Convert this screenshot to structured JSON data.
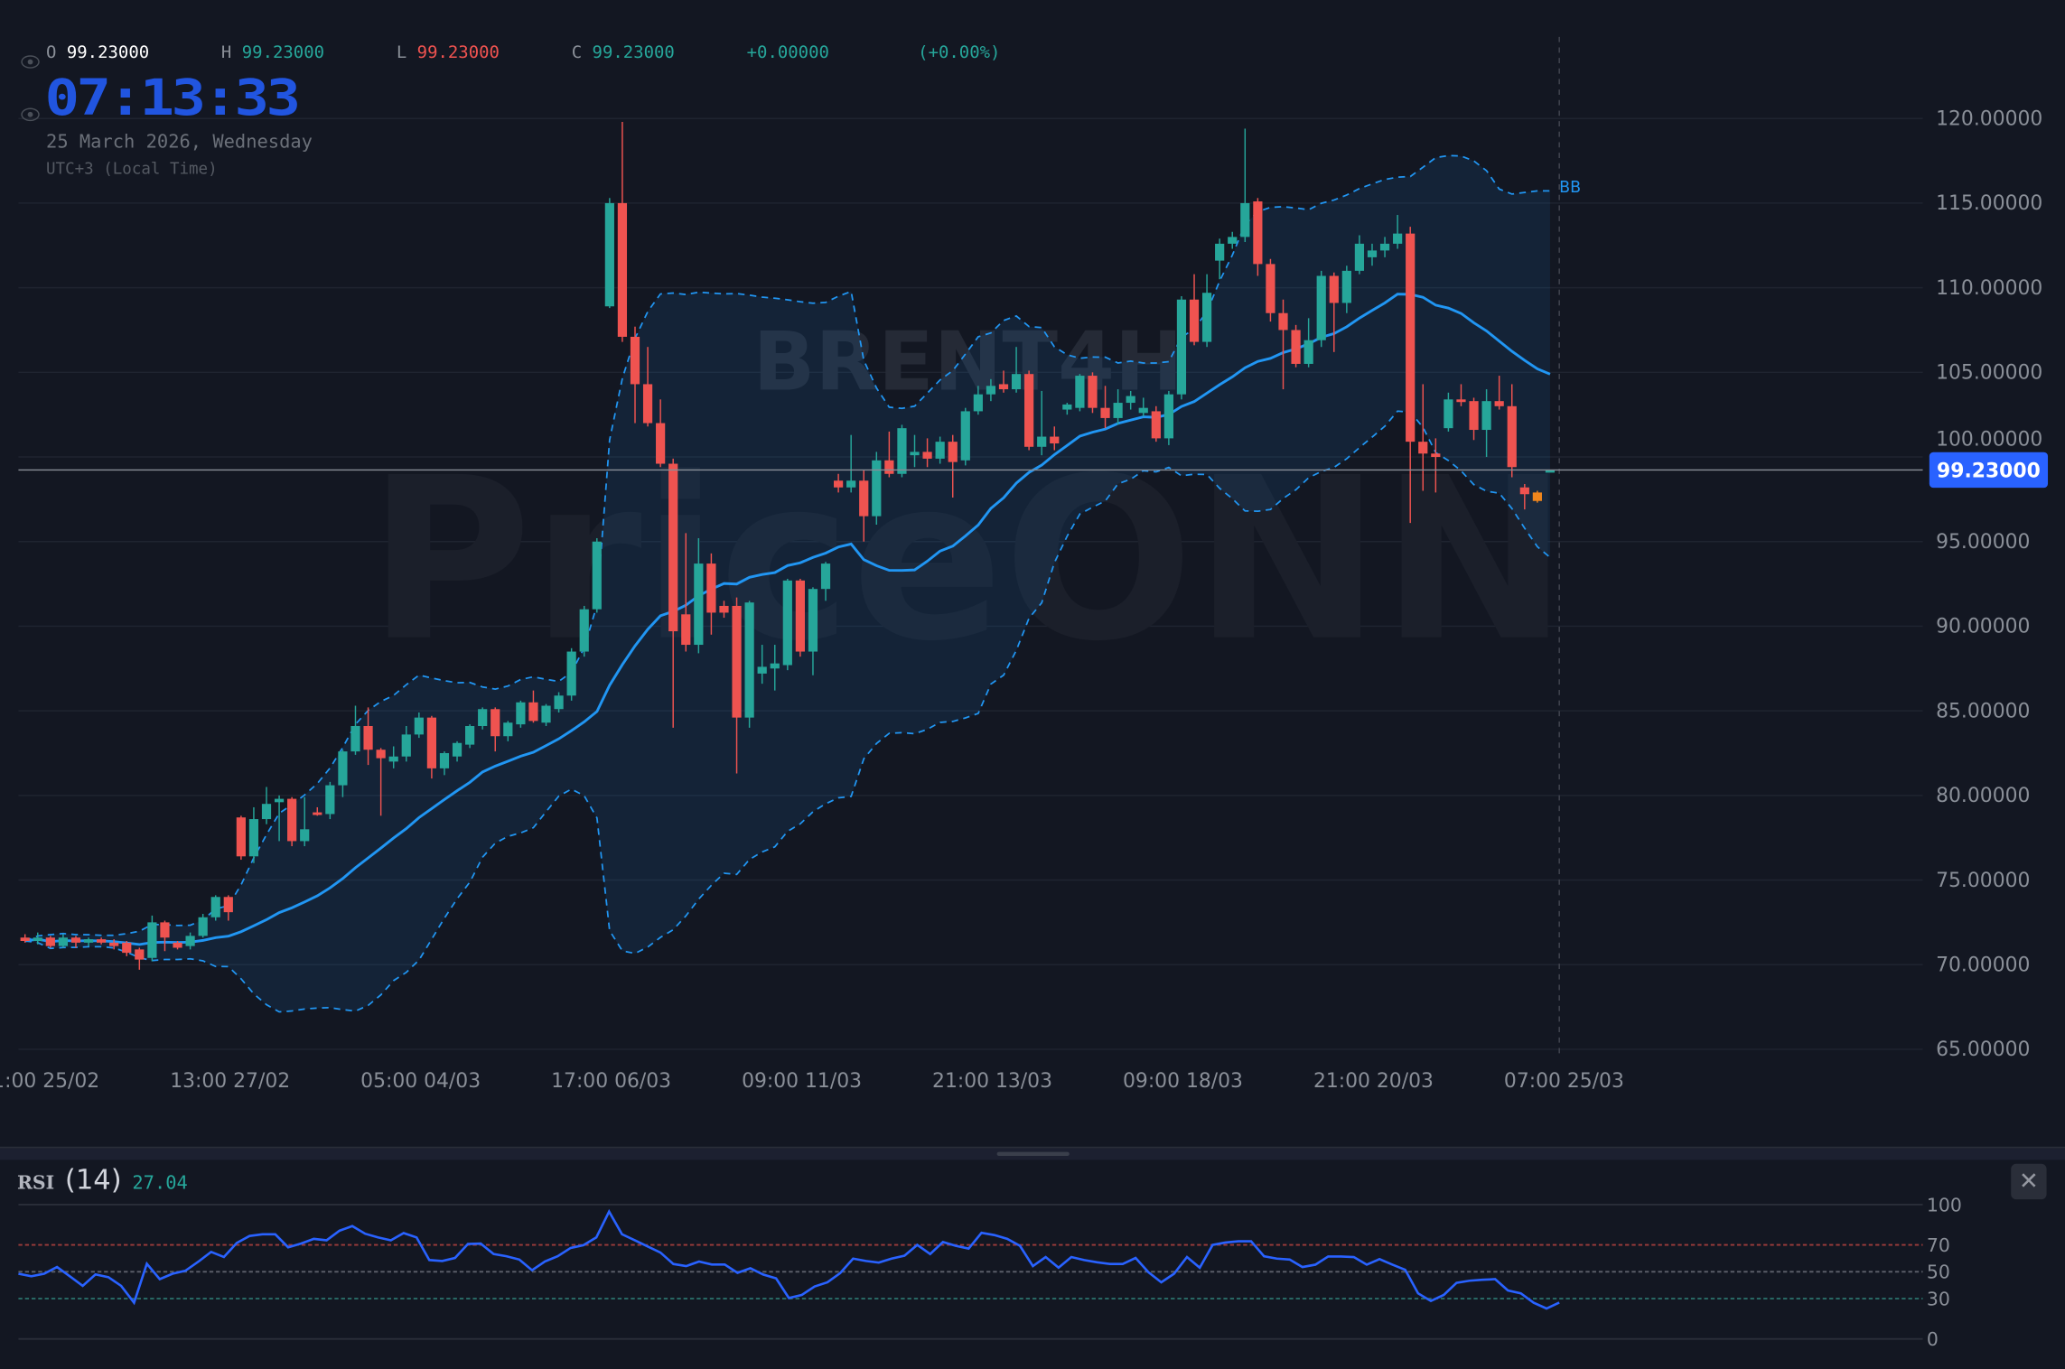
{
  "symbol_watermark": "BRENT4H",
  "brand_watermark": "PriceONN",
  "legend": {
    "o_label": "O",
    "o_value": "99.23000",
    "h_label": "H",
    "h_value": "99.23000",
    "l_label": "L",
    "l_value": "99.23000",
    "c_label": "C",
    "c_value": "99.23000",
    "change": "+0.00000",
    "change_pct": "(+0.00%)"
  },
  "clock": {
    "time": "07:13:33",
    "date": "25 March 2026, Wednesday",
    "timezone": "UTC+3 (Local Time)"
  },
  "indicator_label": "BB",
  "current_price_label": "99.23000",
  "price_axis": [
    "120.00000",
    "115.00000",
    "110.00000",
    "105.00000",
    "100.00000",
    "95.00000",
    "90.00000",
    "85.00000",
    "80.00000",
    "75.00000",
    "70.00000",
    "65.00000"
  ],
  "time_axis": [
    "21:00 25/02",
    "13:00 27/02",
    "05:00 04/03",
    "17:00 06/03",
    "09:00 11/03",
    "21:00 13/03",
    "09:00 18/03",
    "21:00 20/03",
    "07:00 25/03"
  ],
  "rsi": {
    "name": "RSI",
    "length": "(14)",
    "value": "27.04",
    "levels": [
      "100",
      "70",
      "50",
      "30",
      "0"
    ],
    "close_label": "✕"
  },
  "colors": {
    "background": "#131722",
    "up": "#26a69a",
    "down": "#ef5350",
    "highlight": "#f0861c",
    "bb": "#2196f3",
    "rsi": "#2962ff",
    "clock": "#2155e0",
    "price_tag": "#2962ff"
  },
  "chart_data": {
    "type": "candlestick",
    "timeframe": "4H",
    "ylim": [
      65,
      120
    ],
    "current_price": 99.23,
    "highlight_index": 119,
    "ohlc": [
      [
        71.6,
        71.8,
        71.3,
        71.4
      ],
      [
        71.4,
        71.9,
        71.2,
        71.6
      ],
      [
        71.6,
        71.7,
        71.0,
        71.1
      ],
      [
        71.1,
        71.8,
        71.0,
        71.6
      ],
      [
        71.6,
        71.7,
        71.0,
        71.3
      ],
      [
        71.3,
        71.6,
        71.1,
        71.5
      ],
      [
        71.5,
        71.6,
        71.2,
        71.3
      ],
      [
        71.3,
        71.5,
        70.9,
        71.1
      ],
      [
        71.3,
        71.4,
        70.5,
        70.7
      ],
      [
        70.9,
        71.0,
        69.7,
        70.3
      ],
      [
        70.4,
        72.9,
        70.2,
        72.5
      ],
      [
        72.5,
        72.6,
        70.8,
        71.6
      ],
      [
        71.3,
        71.4,
        70.9,
        71.0
      ],
      [
        71.1,
        71.9,
        70.9,
        71.7
      ],
      [
        71.7,
        73.0,
        71.6,
        72.8
      ],
      [
        72.8,
        74.1,
        72.6,
        74.0
      ],
      [
        74.0,
        74.1,
        72.6,
        73.1
      ],
      [
        78.7,
        78.8,
        76.2,
        76.4
      ],
      [
        76.4,
        79.3,
        76.0,
        78.6
      ],
      [
        78.6,
        80.5,
        78.3,
        79.5
      ],
      [
        79.6,
        80.0,
        77.3,
        79.8
      ],
      [
        79.8,
        79.9,
        77.0,
        77.3
      ],
      [
        77.3,
        79.9,
        77.0,
        78.0
      ],
      [
        79.0,
        79.3,
        78.8,
        78.9
      ],
      [
        78.9,
        80.8,
        78.6,
        80.6
      ],
      [
        80.6,
        82.7,
        79.9,
        82.6
      ],
      [
        82.6,
        85.3,
        82.4,
        84.1
      ],
      [
        84.1,
        85.2,
        81.8,
        82.7
      ],
      [
        82.7,
        82.8,
        78.8,
        82.2
      ],
      [
        82.0,
        82.9,
        81.6,
        82.3
      ],
      [
        82.3,
        84.1,
        82.0,
        83.6
      ],
      [
        83.6,
        84.9,
        83.4,
        84.6
      ],
      [
        84.6,
        84.7,
        81.0,
        81.6
      ],
      [
        81.6,
        82.6,
        81.2,
        82.5
      ],
      [
        82.3,
        83.2,
        82.0,
        83.1
      ],
      [
        83.0,
        84.2,
        82.8,
        84.1
      ],
      [
        84.1,
        85.2,
        83.9,
        85.1
      ],
      [
        85.1,
        85.2,
        82.6,
        83.5
      ],
      [
        83.5,
        84.4,
        83.2,
        84.3
      ],
      [
        84.2,
        85.6,
        84.0,
        85.5
      ],
      [
        85.5,
        86.2,
        84.3,
        84.4
      ],
      [
        84.3,
        85.4,
        84.1,
        85.3
      ],
      [
        85.1,
        86.1,
        84.9,
        85.9
      ],
      [
        85.9,
        88.7,
        85.6,
        88.5
      ],
      [
        88.5,
        91.2,
        88.2,
        91.0
      ],
      [
        91.0,
        95.2,
        90.8,
        95.0
      ],
      [
        108.9,
        115.3,
        108.8,
        115.0
      ],
      [
        115.0,
        119.8,
        106.8,
        107.1
      ],
      [
        107.1,
        107.7,
        102.0,
        104.3
      ],
      [
        104.3,
        106.5,
        101.8,
        102.0
      ],
      [
        102.0,
        103.4,
        99.4,
        99.6
      ],
      [
        99.6,
        99.9,
        84.0,
        89.7
      ],
      [
        90.7,
        95.5,
        88.5,
        88.9
      ],
      [
        88.9,
        95.2,
        88.4,
        93.7
      ],
      [
        93.7,
        94.3,
        89.5,
        90.8
      ],
      [
        91.2,
        91.5,
        90.5,
        90.8
      ],
      [
        91.2,
        91.7,
        81.3,
        84.6
      ],
      [
        84.6,
        91.5,
        84.0,
        91.4
      ],
      [
        87.2,
        88.9,
        86.6,
        87.6
      ],
      [
        87.5,
        88.9,
        86.2,
        87.8
      ],
      [
        87.7,
        92.8,
        87.4,
        92.7
      ],
      [
        92.7,
        92.8,
        88.2,
        88.5
      ],
      [
        88.5,
        92.3,
        87.1,
        92.2
      ],
      [
        92.2,
        93.8,
        91.5,
        93.7
      ],
      [
        98.6,
        99.0,
        97.9,
        98.2
      ],
      [
        98.2,
        101.3,
        97.9,
        98.6
      ],
      [
        98.6,
        99.2,
        95.0,
        96.5
      ],
      [
        96.5,
        100.3,
        96.0,
        99.8
      ],
      [
        99.8,
        101.5,
        98.8,
        99.0
      ],
      [
        99.0,
        101.9,
        98.8,
        101.7
      ],
      [
        100.1,
        101.3,
        99.4,
        100.3
      ],
      [
        100.3,
        101.1,
        99.4,
        99.9
      ],
      [
        99.9,
        101.2,
        99.6,
        100.9
      ],
      [
        100.9,
        101.3,
        97.6,
        99.7
      ],
      [
        99.8,
        102.9,
        99.5,
        102.7
      ],
      [
        102.7,
        104.2,
        102.5,
        103.7
      ],
      [
        103.7,
        104.6,
        103.3,
        104.2
      ],
      [
        104.3,
        105.1,
        103.8,
        104.0
      ],
      [
        104.0,
        106.5,
        103.8,
        104.9
      ],
      [
        104.9,
        105.1,
        100.4,
        100.6
      ],
      [
        100.6,
        103.9,
        100.1,
        101.2
      ],
      [
        101.2,
        101.8,
        100.4,
        100.8
      ],
      [
        102.8,
        103.2,
        102.5,
        103.1
      ],
      [
        102.9,
        104.9,
        102.7,
        104.8
      ],
      [
        104.8,
        105.0,
        102.6,
        102.9
      ],
      [
        102.9,
        104.2,
        101.7,
        102.3
      ],
      [
        102.3,
        104.0,
        101.9,
        103.2
      ],
      [
        103.2,
        103.9,
        102.8,
        103.6
      ],
      [
        102.6,
        103.5,
        102.4,
        102.9
      ],
      [
        102.7,
        103.0,
        100.9,
        101.1
      ],
      [
        101.1,
        103.9,
        100.7,
        103.7
      ],
      [
        103.7,
        109.5,
        103.4,
        109.3
      ],
      [
        109.3,
        110.8,
        106.6,
        106.8
      ],
      [
        106.8,
        110.8,
        106.5,
        109.7
      ],
      [
        111.6,
        112.9,
        110.5,
        112.6
      ],
      [
        112.6,
        113.3,
        112.3,
        113.0
      ],
      [
        113.0,
        119.4,
        112.7,
        115.0
      ],
      [
        115.1,
        115.3,
        110.7,
        111.4
      ],
      [
        111.4,
        111.7,
        108.0,
        108.5
      ],
      [
        108.5,
        109.3,
        104.0,
        107.5
      ],
      [
        107.5,
        107.8,
        105.3,
        105.5
      ],
      [
        105.5,
        108.2,
        105.3,
        106.9
      ],
      [
        106.9,
        111.0,
        106.5,
        110.7
      ],
      [
        110.7,
        110.9,
        106.2,
        109.1
      ],
      [
        109.1,
        111.3,
        108.5,
        111.0
      ],
      [
        111.0,
        113.1,
        110.8,
        112.6
      ],
      [
        111.8,
        112.6,
        111.3,
        112.2
      ],
      [
        112.2,
        113.0,
        111.8,
        112.6
      ],
      [
        112.6,
        114.3,
        112.3,
        113.2
      ],
      [
        113.2,
        113.6,
        96.1,
        100.9
      ],
      [
        100.9,
        104.3,
        98.0,
        100.2
      ],
      [
        100.2,
        101.1,
        97.9,
        100.0
      ],
      [
        101.7,
        103.8,
        101.5,
        103.4
      ],
      [
        103.4,
        104.3,
        103.0,
        103.3
      ],
      [
        103.3,
        103.5,
        101.0,
        101.6
      ],
      [
        101.6,
        104.0,
        100.0,
        103.3
      ],
      [
        103.3,
        104.8,
        102.8,
        103.0
      ],
      [
        103.0,
        104.3,
        98.8,
        99.4
      ],
      [
        98.2,
        98.4,
        96.9,
        97.8
      ],
      [
        97.9,
        98.0,
        97.3,
        97.4
      ],
      [
        99.23,
        99.23,
        99.23,
        99.23
      ]
    ],
    "bollinger": {
      "period": 20,
      "stddev": 2
    },
    "rsi_series": [
      48.5,
      46.7,
      48.5,
      53.5,
      46.7,
      39.5,
      48,
      46,
      39.5,
      27,
      56,
      44.5,
      48.5,
      50.8,
      57.5,
      64.8,
      61,
      71.5,
      76.7,
      77.9,
      77.9,
      68.2,
      71,
      74.5,
      73.4,
      80.6,
      84,
      78.3,
      75.6,
      73.4,
      78.8,
      75.6,
      58.7,
      58,
      60.3,
      70.7,
      71,
      63.2,
      61.6,
      59.1,
      51.2,
      57.6,
      61.6,
      67.7,
      69.8,
      75.6,
      94.8,
      77.9,
      73.4,
      68.8,
      64.3,
      55.8,
      54.2,
      57.6,
      55.4,
      55.4,
      49.2,
      52.6,
      47.9,
      45.1,
      30.5,
      32.7,
      39,
      42.2,
      49,
      59.8,
      58,
      56.9,
      59.8,
      62,
      70,
      63.2,
      72.2,
      69.3,
      67.3,
      79,
      77.4,
      74.5,
      69.3,
      54.2,
      61,
      53,
      61,
      58.7,
      57.1,
      55.8,
      55.8,
      60.3,
      49.7,
      42.2,
      48.5,
      61,
      53,
      70,
      71.8,
      72.7,
      72.7,
      61.6,
      59.8,
      59.1,
      53.5,
      55.3,
      61.4,
      61.4,
      61,
      55.3,
      59.4,
      55.3,
      51.5,
      33.9,
      28.2,
      32.7,
      41.8,
      43.3,
      44,
      44.5,
      36.1,
      33.9,
      27,
      22.6,
      27.04
    ]
  }
}
